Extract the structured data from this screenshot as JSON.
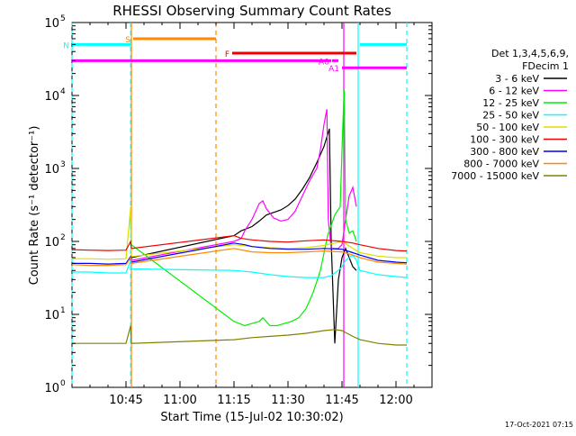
{
  "chart_data": {
    "type": "line",
    "title": "RHESSI Observing Summary Count Rates",
    "xlabel": "Start Time (15-Jul-02 10:30:02)",
    "ylabel": "Count Rate (s⁻¹ detector⁻¹)",
    "x_axis": {
      "start": "10:30",
      "end": "12:10",
      "ticks": [
        {
          "label": "10:45",
          "min": 15
        },
        {
          "label": "11:00",
          "min": 30
        },
        {
          "label": "11:15",
          "min": 45
        },
        {
          "label": "11:30",
          "min": 60
        },
        {
          "label": "11:45",
          "min": 75
        },
        {
          "label": "12:00",
          "min": 90
        }
      ]
    },
    "y_axis": {
      "scale": "log",
      "ylim": [
        1,
        100000
      ],
      "ticks": [
        {
          "base": "10",
          "exp": "0",
          "value": 1
        },
        {
          "base": "10",
          "exp": "1",
          "value": 10
        },
        {
          "base": "10",
          "exp": "2",
          "value": 100
        },
        {
          "base": "10",
          "exp": "3",
          "value": 1000
        },
        {
          "base": "10",
          "exp": "4",
          "value": 10000
        },
        {
          "base": "10",
          "exp": "5",
          "value": 100000
        }
      ]
    },
    "legend": {
      "placement": "right",
      "header": [
        "Det 1,3,4,5,6,9,",
        "FDecim 1"
      ]
    },
    "series": [
      {
        "name": "3 - 6 keV",
        "color": "#000000",
        "points": [
          [
            16.2,
            55
          ],
          [
            16.5,
            60
          ],
          [
            45,
            120
          ],
          [
            47,
            140
          ],
          [
            50,
            160
          ],
          [
            52,
            190
          ],
          [
            54,
            230
          ],
          [
            56,
            250
          ],
          [
            58,
            270
          ],
          [
            60,
            310
          ],
          [
            62,
            380
          ],
          [
            64,
            520
          ],
          [
            66,
            750
          ],
          [
            68,
            1200
          ],
          [
            70,
            2000
          ],
          [
            71.5,
            3500
          ],
          [
            72,
            100
          ],
          [
            73,
            4
          ],
          [
            74,
            30
          ],
          [
            75,
            60
          ],
          [
            76,
            80
          ],
          [
            77,
            60
          ],
          [
            78,
            45
          ],
          [
            79,
            40
          ]
        ]
      },
      {
        "name": "6 - 12 keV",
        "color": "#ff00ff",
        "points": [
          [
            16.2,
            50
          ],
          [
            16.5,
            55
          ],
          [
            45,
            100
          ],
          [
            47,
            110
          ],
          [
            48,
            140
          ],
          [
            50,
            200
          ],
          [
            52,
            330
          ],
          [
            53,
            360
          ],
          [
            54,
            280
          ],
          [
            56,
            210
          ],
          [
            58,
            190
          ],
          [
            60,
            200
          ],
          [
            62,
            260
          ],
          [
            64,
            420
          ],
          [
            66,
            680
          ],
          [
            68,
            1000
          ],
          [
            69,
            1800
          ],
          [
            70,
            4000
          ],
          [
            70.8,
            6500
          ],
          [
            71.2,
            200
          ],
          [
            72,
            80
          ],
          [
            74,
            80
          ],
          [
            75,
            90
          ],
          [
            76,
            200
          ],
          [
            77,
            420
          ],
          [
            78,
            550
          ],
          [
            79,
            300
          ]
        ]
      },
      {
        "name": "12 - 25 keV",
        "color": "#00ee00",
        "points": [
          [
            16.2,
            220
          ],
          [
            16.5,
            90
          ],
          [
            45,
            8
          ],
          [
            48,
            7
          ],
          [
            50,
            7.5
          ],
          [
            52,
            8
          ],
          [
            53,
            9
          ],
          [
            55,
            7
          ],
          [
            57,
            7
          ],
          [
            59,
            7.5
          ],
          [
            61,
            8
          ],
          [
            63,
            9
          ],
          [
            65,
            12
          ],
          [
            67,
            20
          ],
          [
            69,
            40
          ],
          [
            71,
            120
          ],
          [
            73,
            230
          ],
          [
            74.5,
            300
          ],
          [
            75.2,
            3500
          ],
          [
            75.6,
            12000
          ],
          [
            76,
            200
          ],
          [
            77,
            130
          ],
          [
            78,
            140
          ],
          [
            79,
            100
          ]
        ]
      },
      {
        "name": "25 - 50 keV",
        "color": "#00ffff",
        "points": [
          [
            0,
            38
          ],
          [
            5,
            38
          ],
          [
            10,
            37
          ],
          [
            15,
            37
          ],
          [
            16.3,
            55
          ],
          [
            16.5,
            42
          ],
          [
            45,
            40
          ],
          [
            50,
            38
          ],
          [
            55,
            35
          ],
          [
            60,
            33
          ],
          [
            65,
            32
          ],
          [
            70,
            32
          ],
          [
            72,
            34
          ],
          [
            74,
            40
          ],
          [
            75,
            45
          ],
          [
            76,
            55
          ],
          [
            77,
            60
          ],
          [
            78,
            65
          ],
          [
            79,
            55
          ],
          [
            80,
            40
          ],
          [
            85,
            35
          ],
          [
            90,
            33
          ],
          [
            93,
            32
          ]
        ]
      },
      {
        "name": "50 - 100 keV",
        "color": "#dddd00",
        "points": [
          [
            0,
            58
          ],
          [
            5,
            58
          ],
          [
            10,
            57
          ],
          [
            15,
            58
          ],
          [
            16.3,
            300
          ],
          [
            16.5,
            62
          ],
          [
            45,
            90
          ],
          [
            50,
            85
          ],
          [
            55,
            82
          ],
          [
            60,
            80
          ],
          [
            65,
            82
          ],
          [
            70,
            88
          ],
          [
            75,
            100
          ],
          [
            78,
            80
          ],
          [
            80,
            70
          ],
          [
            85,
            63
          ],
          [
            90,
            60
          ],
          [
            93,
            60
          ]
        ]
      },
      {
        "name": "100 - 300 keV",
        "color": "#ee0000",
        "points": [
          [
            0,
            77
          ],
          [
            5,
            76
          ],
          [
            10,
            75
          ],
          [
            15,
            76
          ],
          [
            16.3,
            100
          ],
          [
            16.5,
            80
          ],
          [
            45,
            120
          ],
          [
            47,
            110
          ],
          [
            50,
            105
          ],
          [
            55,
            100
          ],
          [
            60,
            98
          ],
          [
            65,
            102
          ],
          [
            70,
            105
          ],
          [
            75,
            100
          ],
          [
            78,
            95
          ],
          [
            80,
            90
          ],
          [
            85,
            80
          ],
          [
            90,
            75
          ],
          [
            93,
            74
          ]
        ]
      },
      {
        "name": "300 - 800 keV",
        "color": "#0000ee",
        "points": [
          [
            0,
            50
          ],
          [
            5,
            50
          ],
          [
            10,
            49
          ],
          [
            15,
            50
          ],
          [
            16.3,
            62
          ],
          [
            16.5,
            52
          ],
          [
            45,
            95
          ],
          [
            48,
            90
          ],
          [
            50,
            85
          ],
          [
            55,
            80
          ],
          [
            60,
            78
          ],
          [
            65,
            78
          ],
          [
            70,
            80
          ],
          [
            75,
            78
          ],
          [
            78,
            70
          ],
          [
            80,
            65
          ],
          [
            85,
            55
          ],
          [
            90,
            52
          ],
          [
            93,
            51
          ]
        ]
      },
      {
        "name": "800 - 7000 keV",
        "color": "#ff8800",
        "points": [
          [
            0,
            48
          ],
          [
            5,
            47
          ],
          [
            10,
            47
          ],
          [
            15,
            48
          ],
          [
            16.3,
            60
          ],
          [
            16.5,
            50
          ],
          [
            45,
            80
          ],
          [
            48,
            75
          ],
          [
            50,
            72
          ],
          [
            55,
            70
          ],
          [
            60,
            70
          ],
          [
            65,
            72
          ],
          [
            70,
            74
          ],
          [
            75,
            72
          ],
          [
            78,
            65
          ],
          [
            80,
            60
          ],
          [
            85,
            52
          ],
          [
            90,
            50
          ],
          [
            93,
            49
          ]
        ]
      },
      {
        "name": "7000 - 15000 keV",
        "color": "#808000",
        "points": [
          [
            0,
            4
          ],
          [
            5,
            4
          ],
          [
            10,
            4
          ],
          [
            15,
            4
          ],
          [
            16.3,
            7
          ],
          [
            16.5,
            4
          ],
          [
            45,
            4.5
          ],
          [
            50,
            4.8
          ],
          [
            55,
            5
          ],
          [
            60,
            5.2
          ],
          [
            65,
            5.5
          ],
          [
            70,
            6
          ],
          [
            73,
            6.2
          ],
          [
            75,
            6
          ],
          [
            78,
            5
          ],
          [
            80,
            4.5
          ],
          [
            85,
            4
          ],
          [
            90,
            3.8
          ],
          [
            93,
            3.8
          ]
        ]
      }
    ],
    "flags": [
      {
        "label": "S",
        "color": "#ff8800",
        "start_min": 17,
        "end_min": 40,
        "value": 60000,
        "label_color": "#ff8800"
      },
      {
        "label": "N",
        "color": "#00ffff",
        "start_min": 0,
        "end_min": 16.3,
        "value": 50000,
        "label_color": "#00ffff"
      },
      {
        "label": "",
        "color": "#00ffff",
        "start_min": 80,
        "end_min": 93,
        "value": 50000,
        "label_color": "#00ffff"
      },
      {
        "label": "F",
        "color": "#ee0000",
        "start_min": 44.5,
        "end_min": 79,
        "value": 38000,
        "label_color": "#ee0000"
      },
      {
        "label": "",
        "color": "#ff00ff",
        "start_min": 0,
        "end_min": 72,
        "value": 30000,
        "label_color": "#ff00ff"
      },
      {
        "label": "A0",
        "color": "#ff00ff",
        "start_min": 72.2,
        "end_min": 74,
        "value": 30000,
        "label_color": "#ff00ff"
      },
      {
        "label": "A1",
        "color": "#ff00ff",
        "start_min": 75,
        "end_min": 93,
        "value": 24000,
        "label_color": "#ff00ff"
      }
    ],
    "markers": [
      {
        "min": 0,
        "color": "#00ffff",
        "style": "dashed"
      },
      {
        "min": 16.3,
        "color": "#00ffff",
        "style": "dashed"
      },
      {
        "min": 16.5,
        "color": "#ff8800",
        "style": "solid"
      },
      {
        "min": 40,
        "color": "#ff8800",
        "style": "dashed"
      },
      {
        "min": 79.5,
        "color": "#00ffff",
        "style": "solid"
      },
      {
        "min": 93,
        "color": "#00ffff",
        "style": "dashed"
      },
      {
        "min": 75.5,
        "color": "#ff00ff",
        "style": "solid"
      }
    ],
    "grid": false,
    "timestamp": "17-Oct-2021 07:15"
  }
}
